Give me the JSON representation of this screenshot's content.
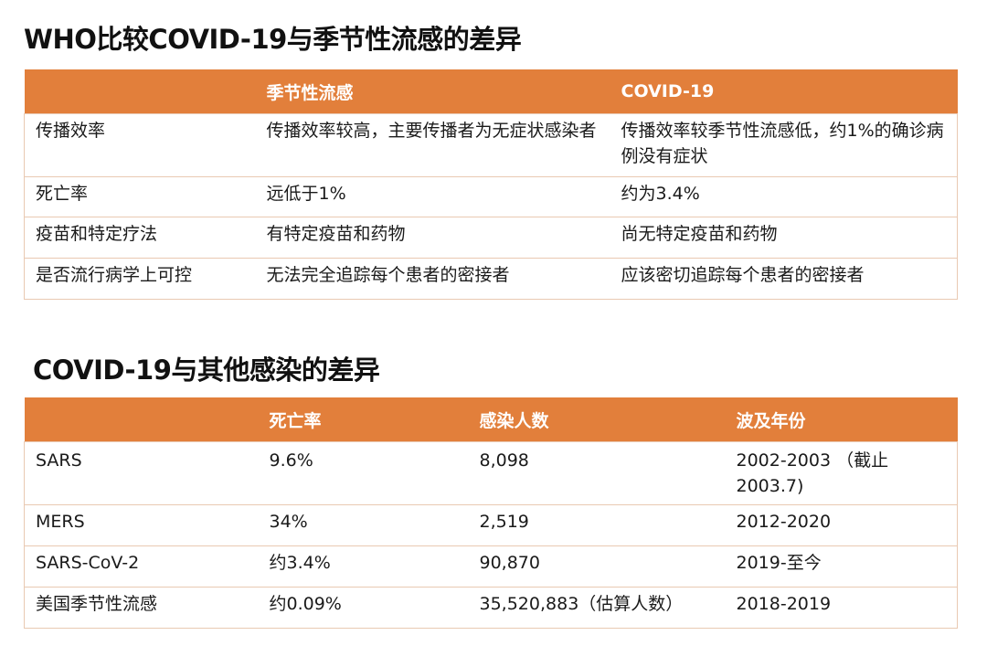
{
  "sections": [
    {
      "title": "WHO比较COVID-19与季节性流感的差异",
      "headers": [
        "",
        "季节性流感",
        "COVID-19"
      ],
      "rows": [
        [
          "传播效率",
          "传播效率较高，主要传播者为无症状感染者",
          "传播效率较季节性流感低，约1%的确诊病例没有症状"
        ],
        [
          "死亡率",
          "远低于1%",
          "约为3.4%"
        ],
        [
          "疫苗和特定疗法",
          "有特定疫苗和药物",
          "尚无特定疫苗和药物"
        ],
        [
          "是否流行病学上可控",
          "无法完全追踪每个患者的密接者",
          "应该密切追踪每个患者的密接者"
        ]
      ]
    },
    {
      "title": "COVID-19与其他感染的差异",
      "headers": [
        "",
        "死亡率",
        "感染人数",
        "波及年份"
      ],
      "rows": [
        [
          "SARS",
          "9.6%",
          "8,098",
          "2002-2003 （截止2003.7)"
        ],
        [
          "MERS",
          "34%",
          "2,519",
          "2012-2020"
        ],
        [
          "SARS-CoV-2",
          "约3.4%",
          "90,870",
          "2019-至今"
        ],
        [
          "美国季节性流感",
          "约0.09%",
          "35,520,883（估算人数）",
          "2018-2019"
        ]
      ]
    }
  ],
  "colors": {
    "header_bg": "#e27f3b",
    "header_text": "#ffffff",
    "border": "#e9c9b2"
  }
}
